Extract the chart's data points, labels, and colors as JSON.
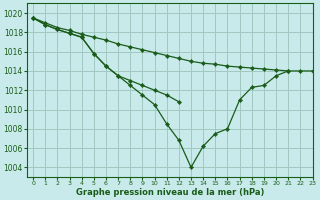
{
  "title": "Graphe pression niveau de la mer (hPa)",
  "background_color": "#c8eaea",
  "grid_color": "#a0c8c0",
  "line_color": "#1a5c1a",
  "xlim": [
    -0.5,
    23
  ],
  "ylim": [
    1003,
    1021
  ],
  "yticks": [
    1004,
    1006,
    1008,
    1010,
    1012,
    1014,
    1016,
    1018,
    1020
  ],
  "xticks": [
    0,
    1,
    2,
    3,
    4,
    5,
    6,
    7,
    8,
    9,
    10,
    11,
    12,
    13,
    14,
    15,
    16,
    17,
    18,
    19,
    20,
    21,
    22,
    23
  ],
  "series": [
    {
      "x": [
        0,
        1,
        2,
        3,
        4,
        5,
        6,
        7,
        8,
        9,
        10,
        11,
        12,
        13,
        14,
        15,
        16,
        17,
        18,
        19,
        20,
        21,
        22,
        23
      ],
      "y": [
        1019.5,
        1019.0,
        1018.5,
        1018.2,
        1017.8,
        1017.5,
        1017.2,
        1016.8,
        1016.5,
        1016.2,
        1015.9,
        1015.6,
        1015.3,
        1015.0,
        1014.8,
        1014.7,
        1014.5,
        1014.4,
        1014.3,
        1014.2,
        1014.1,
        1014.0,
        1014.0,
        1014.0
      ]
    },
    {
      "x": [
        0,
        1,
        2,
        3,
        4,
        5,
        6,
        7,
        8,
        9,
        10,
        11,
        12
      ],
      "y": [
        1019.5,
        1018.8,
        1018.3,
        1017.9,
        1017.5,
        1015.8,
        1014.5,
        1013.5,
        1013.0,
        1012.5,
        1012.0,
        1011.5,
        1010.8
      ]
    },
    {
      "x": [
        0,
        1,
        2,
        3,
        4,
        5,
        6,
        7,
        8,
        9,
        10,
        11,
        12,
        13,
        14,
        15,
        16,
        17,
        18,
        19,
        20,
        21
      ],
      "y": [
        1019.5,
        1018.8,
        1018.3,
        1017.9,
        1017.5,
        1015.8,
        1014.5,
        1013.5,
        1012.5,
        1011.5,
        1010.5,
        1008.5,
        1006.8,
        1004.0,
        1006.2,
        1007.5,
        1008.0,
        1011.0,
        1012.3,
        1012.5,
        1013.5,
        1014.0
      ]
    }
  ]
}
